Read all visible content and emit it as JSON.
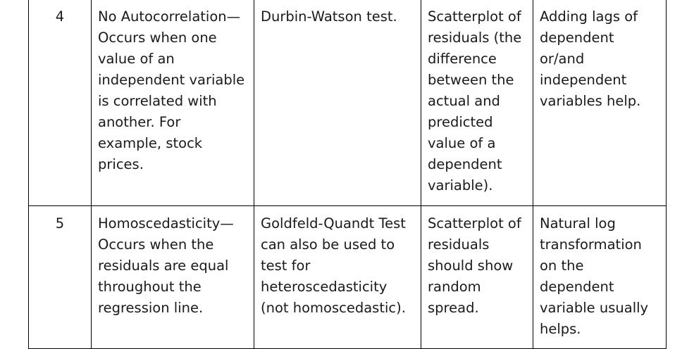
{
  "rows": [
    {
      "number": "4",
      "assumption": "No Autocorrelation—Occurs when one value of an independent variable is correlated with another. For example, stock prices.",
      "test": "Durbin-Watson test.",
      "plot": "Scatterplot of residuals (the difference between the actual and predicted value of a dependent variable).",
      "remedy": "Adding lags of dependent or/and independent variables help."
    },
    {
      "number": "5",
      "assumption": "Homoscedasticity—Occurs when the residuals are equal throughout the regression line.",
      "test": "Goldfeld-Quandt Test can also be used to test for heteroscedasticity (not homoscedastic).",
      "plot": "Scatterplot of residuals should show random spread.",
      "remedy": "Natural log transformation on the dependent variable usually helps."
    }
  ]
}
